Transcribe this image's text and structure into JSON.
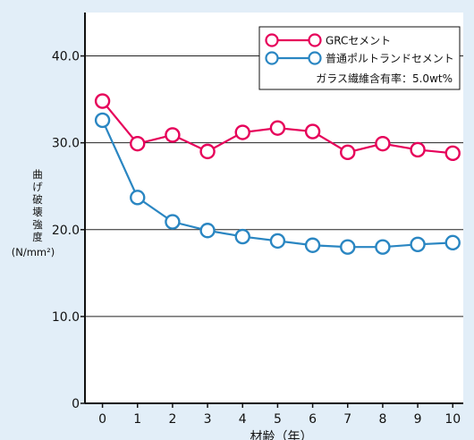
{
  "chart_data": {
    "type": "line",
    "title": "",
    "xlabel": "材齢（年）",
    "ylabel_lines": [
      "曲",
      "げ",
      "破",
      "壊",
      "強",
      "度",
      "(N/mm²)"
    ],
    "x": [
      0,
      1,
      2,
      3,
      4,
      5,
      6,
      7,
      8,
      9,
      10
    ],
    "xticks": [
      "0",
      "1",
      "2",
      "3",
      "4",
      "5",
      "6",
      "7",
      "8",
      "9",
      "10"
    ],
    "yticks": [
      "0",
      "10.0",
      "20.0",
      "30.0",
      "40.0"
    ],
    "ytick_values": [
      0,
      10,
      20,
      30,
      40
    ],
    "xlim": [
      -0.5,
      10.3
    ],
    "ylim": [
      0,
      45
    ],
    "grid": true,
    "legend_position": "top-right",
    "legend_note": "ガラス繊維含有率：5.0wt%",
    "series": [
      {
        "name": "GRCセメント",
        "color": "#e6005a",
        "values": [
          34.8,
          29.9,
          30.9,
          29.0,
          31.2,
          31.7,
          31.3,
          28.9,
          29.9,
          29.2,
          28.8
        ]
      },
      {
        "name": "普通ポルトランドセメント",
        "color": "#2a86c2",
        "values": [
          32.6,
          23.7,
          20.9,
          19.9,
          19.2,
          18.7,
          18.2,
          18.0,
          18.0,
          18.3,
          18.5
        ]
      }
    ]
  }
}
